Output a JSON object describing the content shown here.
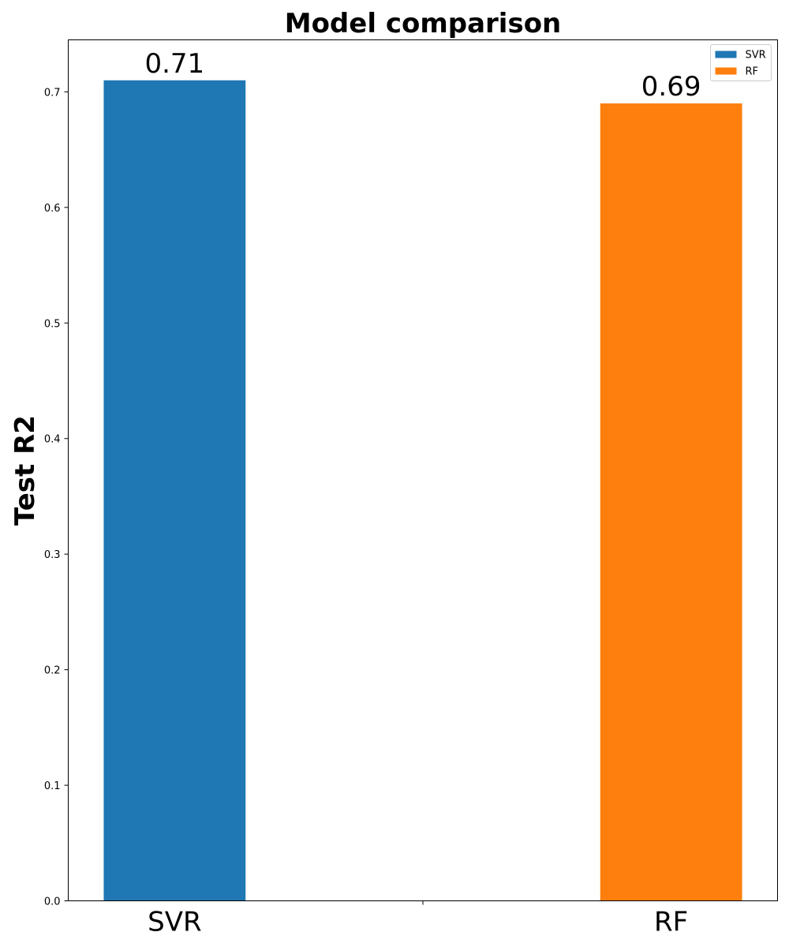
{
  "chart_data": {
    "type": "bar",
    "title": "Model comparison",
    "xlabel": "",
    "ylabel": "Test R2",
    "categories": [
      "SVR",
      "RF"
    ],
    "series": [
      {
        "name": "SVR",
        "values": [
          0.71,
          null
        ],
        "color": "#1f77b4"
      },
      {
        "name": "RF",
        "values": [
          null,
          0.69
        ],
        "color": "#ff7f0e"
      }
    ],
    "data_labels": [
      "0.71",
      "0.69"
    ],
    "ylim": [
      0,
      0.745
    ],
    "yticks": [
      0.0,
      0.1,
      0.2,
      0.3,
      0.4,
      0.5,
      0.6,
      0.7
    ],
    "ytick_labels": [
      "0.0",
      "0.1",
      "0.2",
      "0.3",
      "0.4",
      "0.5",
      "0.6",
      "0.7"
    ],
    "grid": false,
    "legend_position": "top-right"
  }
}
